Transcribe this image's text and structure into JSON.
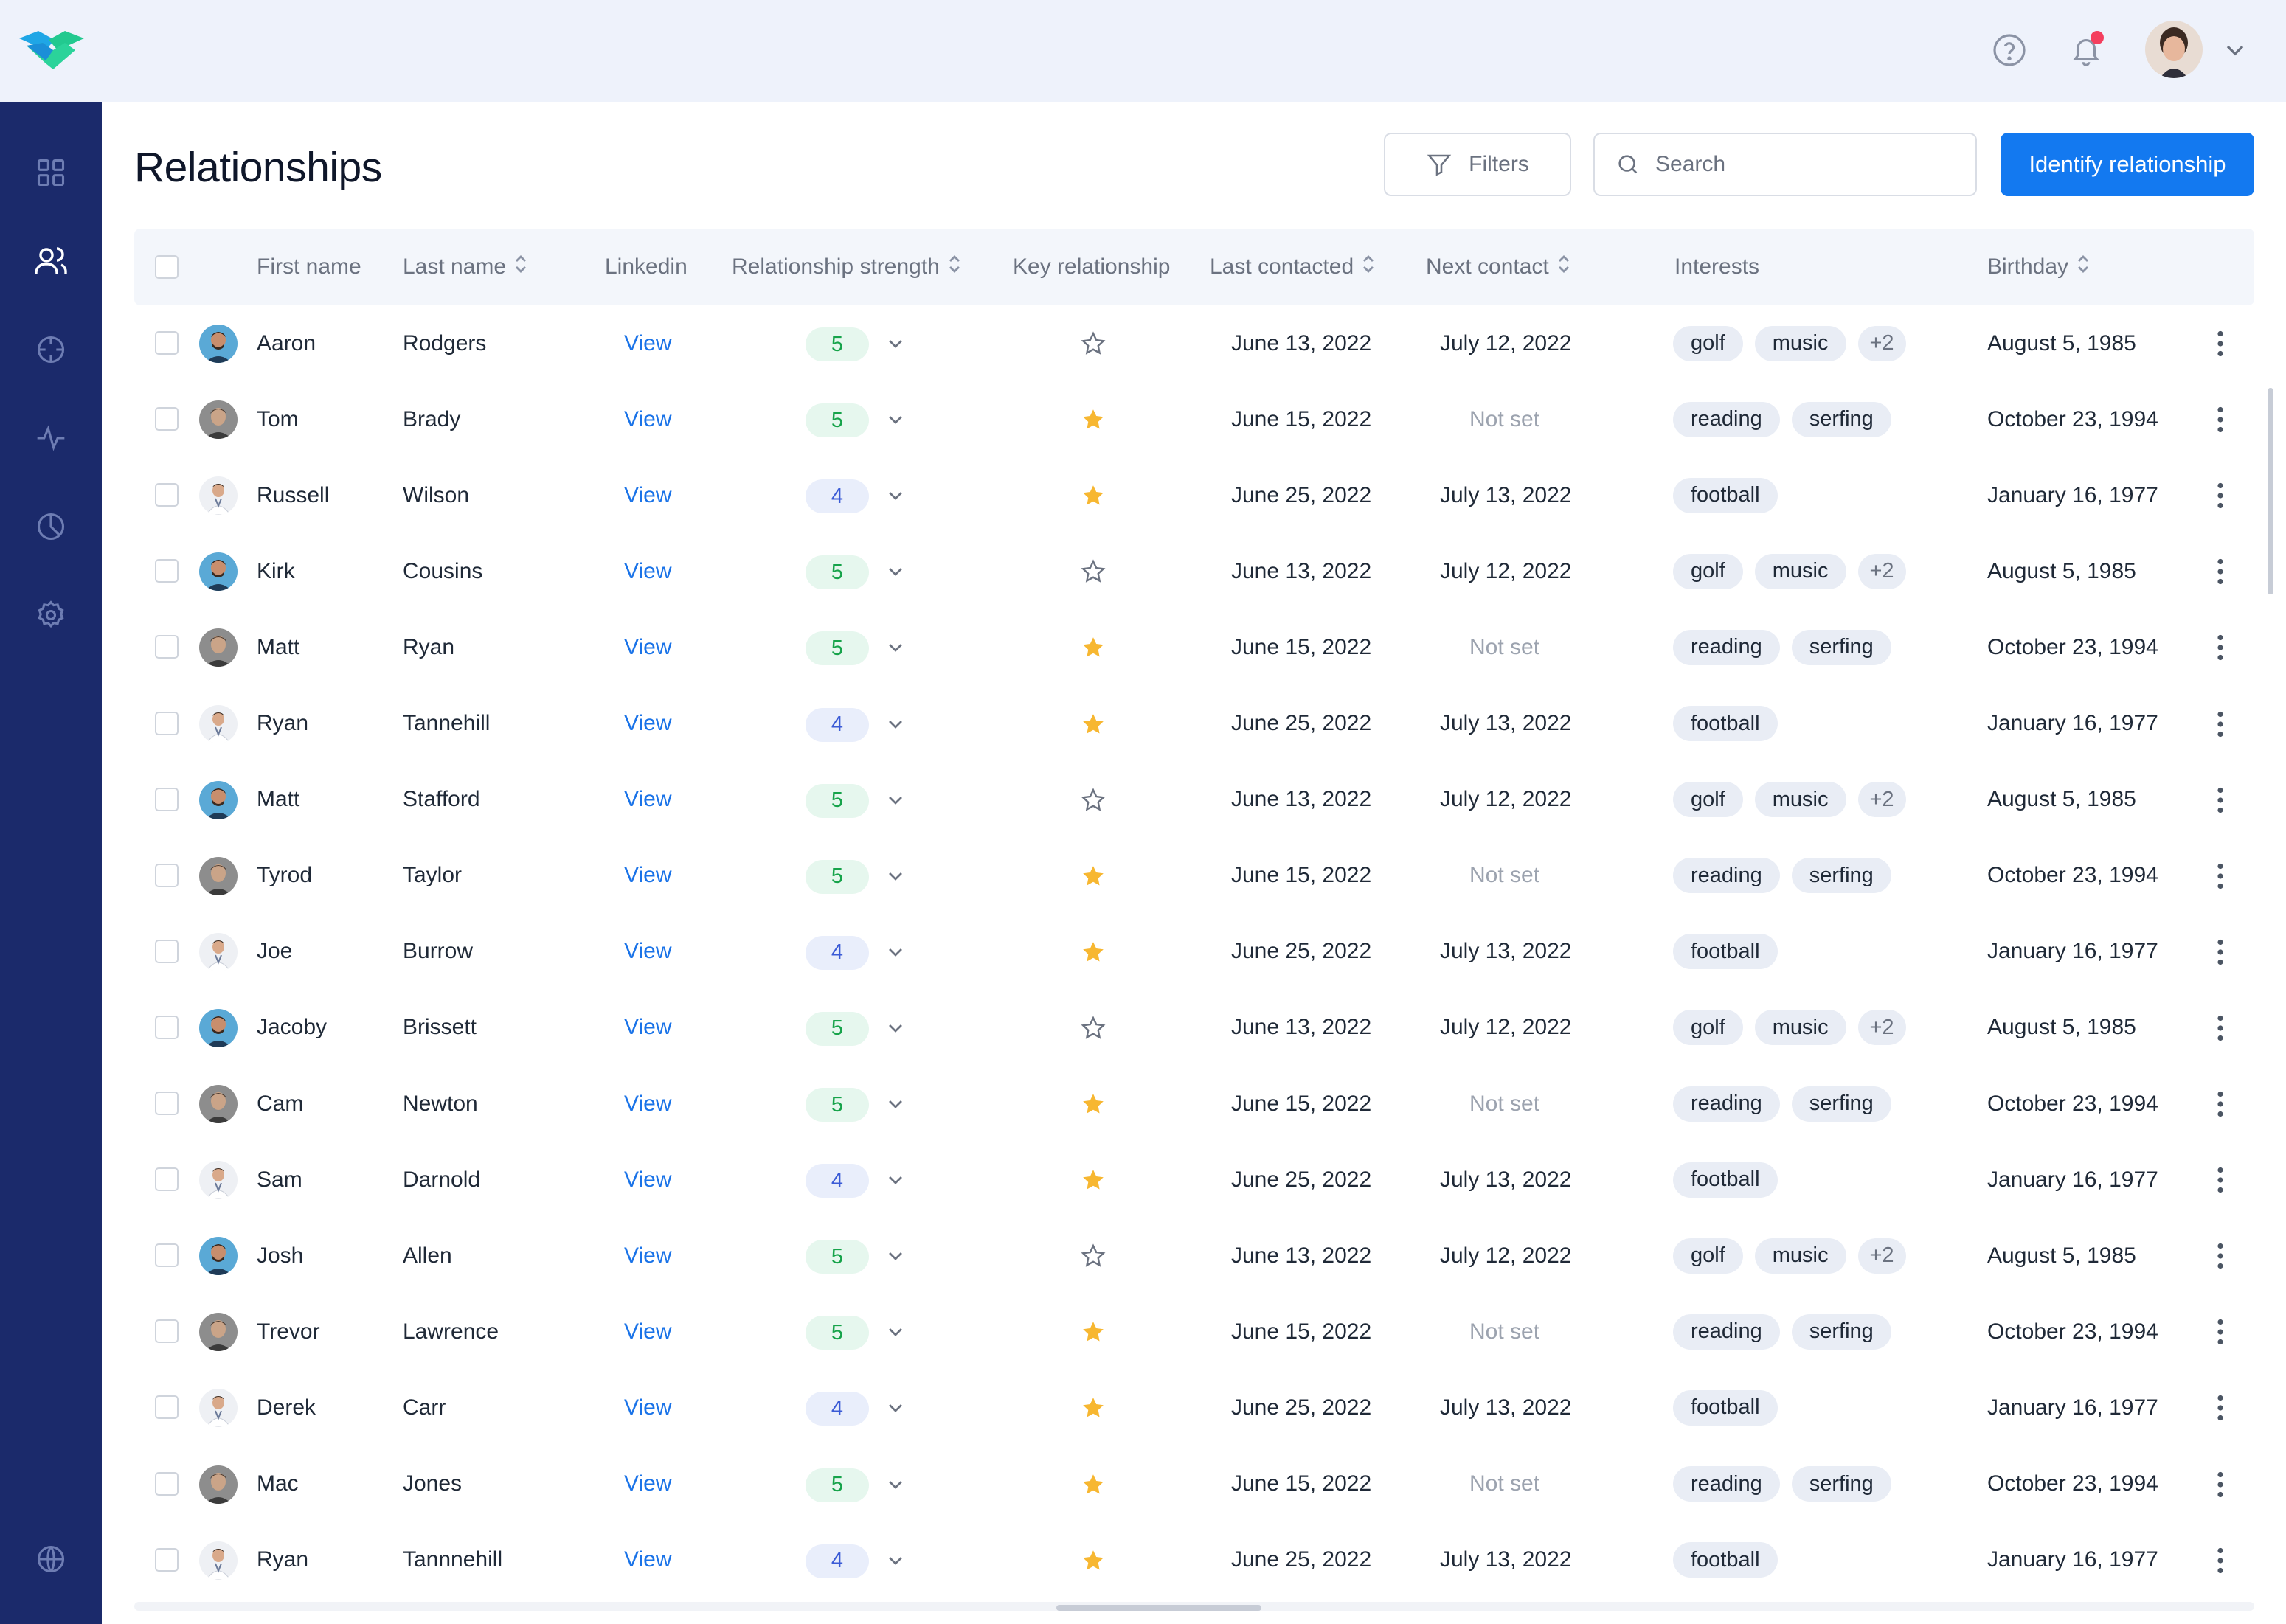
{
  "app": {
    "brand_color": "#1379f0",
    "sidebar_color": "#1b2a6b"
  },
  "topbar": {
    "icons": [
      "handshake-logo",
      "help-icon",
      "bell-icon",
      "avatar",
      "chevron-down-icon"
    ],
    "notification_color": "#f43f5e"
  },
  "sidebar": {
    "items": [
      "dashboard-icon",
      "users-icon",
      "target-icon",
      "activity-icon",
      "pie-chart-icon",
      "gear-icon",
      "globe-icon"
    ],
    "active": "users-icon"
  },
  "page": {
    "title": "Relationships",
    "filters_label": "Filters",
    "search_placeholder": "Search",
    "primary_label": "Identify relationship"
  },
  "table": {
    "headers": {
      "first_name": "First name",
      "last_name": "Last name",
      "linkedin": "Linkedin",
      "strength": "Relationship strength",
      "key": "Key relationship",
      "last_contacted": "Last contacted",
      "next_contact": "Next contact",
      "interests": "Interests",
      "birthday": "Birthday"
    },
    "rows": [
      {
        "first": "Aaron",
        "last": "Rodgers",
        "link": "View",
        "strength": "5",
        "key": false,
        "last_contacted": "June 13, 2022",
        "next_contact": "July 12, 2022",
        "interests": [
          "golf",
          "music"
        ],
        "more": "+2",
        "birthday": "August 5, 1985",
        "avatar": "a"
      },
      {
        "first": "Tom",
        "last": "Brady",
        "link": "View",
        "strength": "5",
        "key": true,
        "last_contacted": "June 15, 2022",
        "next_contact": "Not set",
        "interests": [
          "reading",
          "serfing"
        ],
        "more": "",
        "birthday": "October 23, 1994",
        "avatar": "b"
      },
      {
        "first": "Russell",
        "last": "Wilson",
        "link": "View",
        "strength": "4",
        "key": true,
        "last_contacted": "June 25, 2022",
        "next_contact": "July 13, 2022",
        "interests": [
          "football"
        ],
        "more": "",
        "birthday": "January 16, 1977",
        "avatar": "c"
      },
      {
        "first": "Kirk",
        "last": "Cousins",
        "link": "View",
        "strength": "5",
        "key": false,
        "last_contacted": "June 13, 2022",
        "next_contact": "July 12, 2022",
        "interests": [
          "golf",
          "music"
        ],
        "more": "+2",
        "birthday": "August 5, 1985",
        "avatar": "a"
      },
      {
        "first": "Matt",
        "last": "Ryan",
        "link": "View",
        "strength": "5",
        "key": true,
        "last_contacted": "June 15, 2022",
        "next_contact": "Not set",
        "interests": [
          "reading",
          "serfing"
        ],
        "more": "",
        "birthday": "October 23, 1994",
        "avatar": "b"
      },
      {
        "first": "Ryan",
        "last": "Tannehill",
        "link": "View",
        "strength": "4",
        "key": true,
        "last_contacted": "June 25, 2022",
        "next_contact": "July 13, 2022",
        "interests": [
          "football"
        ],
        "more": "",
        "birthday": "January 16, 1977",
        "avatar": "c"
      },
      {
        "first": "Matt",
        "last": "Stafford",
        "link": "View",
        "strength": "5",
        "key": false,
        "last_contacted": "June 13, 2022",
        "next_contact": "July 12, 2022",
        "interests": [
          "golf",
          "music"
        ],
        "more": "+2",
        "birthday": "August 5, 1985",
        "avatar": "a"
      },
      {
        "first": "Tyrod",
        "last": "Taylor",
        "link": "View",
        "strength": "5",
        "key": true,
        "last_contacted": "June 15, 2022",
        "next_contact": "Not set",
        "interests": [
          "reading",
          "serfing"
        ],
        "more": "",
        "birthday": "October 23, 1994",
        "avatar": "b"
      },
      {
        "first": "Joe",
        "last": "Burrow",
        "link": "View",
        "strength": "4",
        "key": true,
        "last_contacted": "June 25, 2022",
        "next_contact": "July 13, 2022",
        "interests": [
          "football"
        ],
        "more": "",
        "birthday": "January 16, 1977",
        "avatar": "c"
      },
      {
        "first": "Jacoby",
        "last": "Brissett",
        "link": "View",
        "strength": "5",
        "key": false,
        "last_contacted": "June 13, 2022",
        "next_contact": "July 12, 2022",
        "interests": [
          "golf",
          "music"
        ],
        "more": "+2",
        "birthday": "August 5, 1985",
        "avatar": "a"
      },
      {
        "first": "Cam",
        "last": "Newton",
        "link": "View",
        "strength": "5",
        "key": true,
        "last_contacted": "June 15, 2022",
        "next_contact": "Not set",
        "interests": [
          "reading",
          "serfing"
        ],
        "more": "",
        "birthday": "October 23, 1994",
        "avatar": "b"
      },
      {
        "first": "Sam",
        "last": "Darnold",
        "link": "View",
        "strength": "4",
        "key": true,
        "last_contacted": "June 25, 2022",
        "next_contact": "July 13, 2022",
        "interests": [
          "football"
        ],
        "more": "",
        "birthday": "January 16, 1977",
        "avatar": "c"
      },
      {
        "first": "Josh",
        "last": "Allen",
        "link": "View",
        "strength": "5",
        "key": false,
        "last_contacted": "June 13, 2022",
        "next_contact": "July 12, 2022",
        "interests": [
          "golf",
          "music"
        ],
        "more": "+2",
        "birthday": "August 5, 1985",
        "avatar": "a"
      },
      {
        "first": "Trevor",
        "last": "Lawrence",
        "link": "View",
        "strength": "5",
        "key": true,
        "last_contacted": "June 15, 2022",
        "next_contact": "Not set",
        "interests": [
          "reading",
          "serfing"
        ],
        "more": "",
        "birthday": "October 23, 1994",
        "avatar": "b"
      },
      {
        "first": "Derek",
        "last": "Carr",
        "link": "View",
        "strength": "4",
        "key": true,
        "last_contacted": "June 25, 2022",
        "next_contact": "July 13, 2022",
        "interests": [
          "football"
        ],
        "more": "",
        "birthday": "January 16, 1977",
        "avatar": "c"
      },
      {
        "first": "Mac",
        "last": "Jones",
        "link": "View",
        "strength": "5",
        "key": true,
        "last_contacted": "June 15, 2022",
        "next_contact": "Not set",
        "interests": [
          "reading",
          "serfing"
        ],
        "more": "",
        "birthday": "October 23, 1994",
        "avatar": "b"
      },
      {
        "first": "Ryan",
        "last": "Tannnehill",
        "link": "View",
        "strength": "4",
        "key": true,
        "last_contacted": "June 25, 2022",
        "next_contact": "July 13, 2022",
        "interests": [
          "football"
        ],
        "more": "",
        "birthday": "January 16, 1977",
        "avatar": "c"
      }
    ]
  }
}
